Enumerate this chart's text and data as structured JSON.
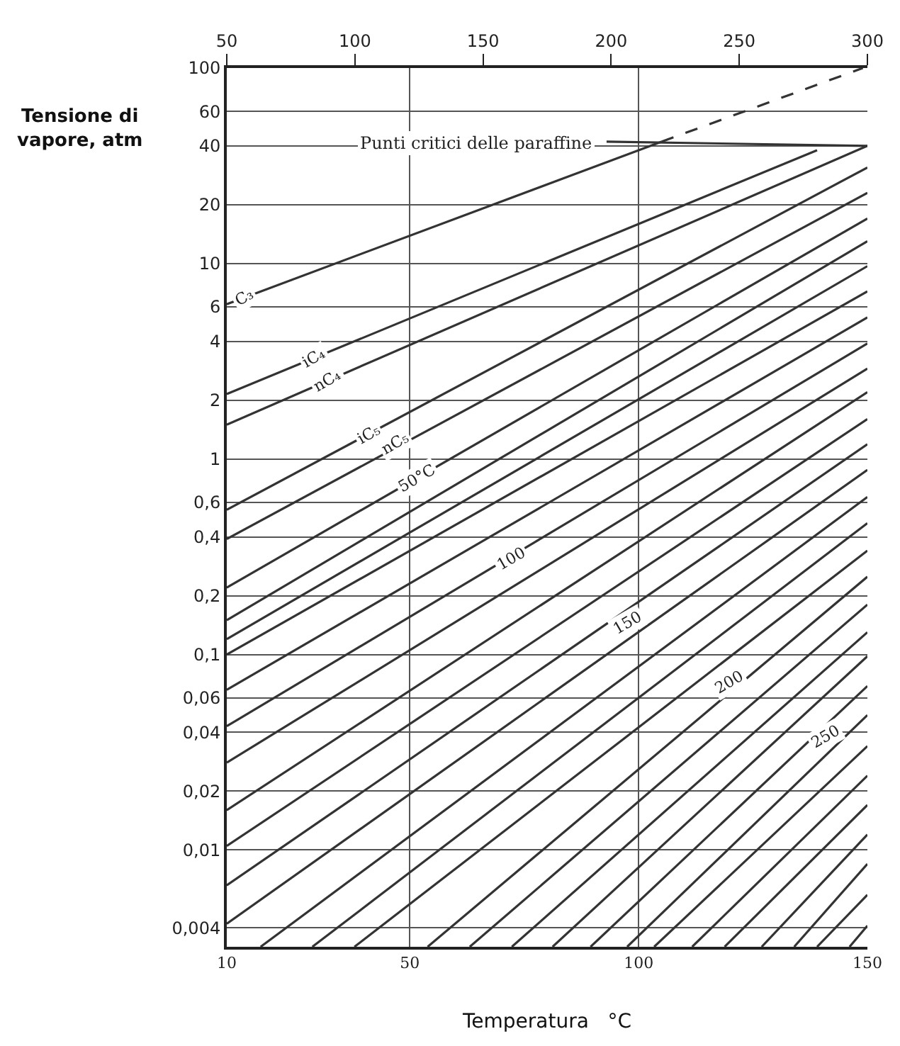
{
  "chart_data": {
    "type": "line",
    "xlabel": "Temperatura   °C",
    "ylabel": "Tensione di\nvapore, atm",
    "x2label": null,
    "xlim": [
      10,
      150
    ],
    "xticks": [
      10,
      50,
      100,
      150
    ],
    "x2lim": [
      50,
      300
    ],
    "x2ticks": [
      50,
      100,
      150,
      200,
      250,
      300
    ],
    "ylim": [
      0.0032,
      100
    ],
    "log": true,
    "yticks": [
      100,
      60,
      40,
      20,
      10,
      6,
      4,
      2,
      1,
      {
        "value": 0.6,
        "label": "0,6"
      },
      {
        "value": 0.4,
        "label": "0,4"
      },
      {
        "value": 0.2,
        "label": "0,2"
      },
      {
        "value": 0.1,
        "label": "0,1"
      },
      {
        "value": 0.06,
        "label": "0,06"
      },
      {
        "value": 0.04,
        "label": "0,04"
      },
      {
        "value": 0.02,
        "label": "0,02"
      },
      {
        "value": 0.01,
        "label": "0,01"
      },
      {
        "value": 0.004,
        "label": "0,004"
      }
    ],
    "grid": true,
    "marker": "none",
    "series": [
      {
        "color": "#333333",
        "x": [
          10,
          105
        ],
        "values": [
          6.2,
          42
        ]
      },
      {
        "color": "#333333",
        "x": [
          105,
          149
        ],
        "values": [
          42,
          100
        ],
        "line_style": "dashed"
      },
      {
        "color": "#333333",
        "x": [
          93,
          150
        ],
        "values": [
          42,
          40
        ]
      },
      {
        "color": "#333333",
        "x": [
          10,
          139
        ],
        "values": [
          2.15,
          38
        ]
      },
      {
        "color": "#333333",
        "x": [
          10,
          150
        ],
        "values": [
          1.5,
          40
        ]
      },
      {
        "color": "#333333",
        "x": [
          10,
          150
        ],
        "values": [
          0.55,
          31
        ]
      },
      {
        "color": "#333333",
        "x": [
          10,
          150
        ],
        "values": [
          0.39,
          23
        ]
      },
      {
        "color": "#333333",
        "x": [
          10,
          150
        ],
        "values": [
          0.22,
          17
        ]
      },
      {
        "color": "#333333",
        "x": [
          10,
          150
        ],
        "values": [
          0.15,
          13
        ]
      },
      {
        "color": "#333333",
        "x": [
          10,
          150
        ],
        "values": [
          0.12,
          9.7
        ]
      },
      {
        "color": "#333333",
        "x": [
          10,
          150
        ],
        "values": [
          0.1,
          7.2
        ]
      },
      {
        "color": "#333333",
        "x": [
          10,
          150
        ],
        "values": [
          0.066,
          5.3
        ]
      },
      {
        "color": "#333333",
        "x": [
          10,
          150
        ],
        "values": [
          0.043,
          3.9
        ]
      },
      {
        "color": "#333333",
        "x": [
          10,
          150
        ],
        "values": [
          0.028,
          2.9
        ]
      },
      {
        "color": "#333333",
        "x": [
          10,
          150
        ],
        "values": [
          0.016,
          2.2
        ]
      },
      {
        "color": "#333333",
        "x": [
          10,
          150
        ],
        "values": [
          0.0105,
          1.6
        ]
      },
      {
        "color": "#333333",
        "x": [
          10,
          150
        ],
        "values": [
          0.0066,
          1.19
        ]
      },
      {
        "color": "#333333",
        "x": [
          10,
          150
        ],
        "values": [
          0.0042,
          0.88
        ]
      },
      {
        "color": "#333333",
        "x": [
          17.4,
          150
        ],
        "values": [
          0.0032,
          0.64
        ]
      },
      {
        "color": "#333333",
        "x": [
          28.7,
          150
        ],
        "values": [
          0.0032,
          0.47
        ]
      },
      {
        "color": "#333333",
        "x": [
          37.9,
          150
        ],
        "values": [
          0.0032,
          0.34
        ]
      },
      {
        "color": "#333333",
        "x": [
          53.9,
          150
        ],
        "values": [
          0.0032,
          0.25
        ]
      },
      {
        "color": "#333333",
        "x": [
          63.1,
          150
        ],
        "values": [
          0.0032,
          0.18
        ]
      },
      {
        "color": "#333333",
        "x": [
          72.3,
          150
        ],
        "values": [
          0.0032,
          0.13
        ]
      },
      {
        "color": "#333333",
        "x": [
          81.2,
          150
        ],
        "values": [
          0.0032,
          0.098
        ]
      },
      {
        "color": "#333333",
        "x": [
          89.5,
          150
        ],
        "values": [
          0.0032,
          0.069
        ]
      },
      {
        "color": "#333333",
        "x": [
          97.5,
          150
        ],
        "values": [
          0.0032,
          0.049
        ]
      },
      {
        "color": "#333333",
        "x": [
          103.4,
          150
        ],
        "values": [
          0.0032,
          0.034
        ]
      },
      {
        "color": "#333333",
        "x": [
          111.7,
          150
        ],
        "values": [
          0.0032,
          0.024
        ]
      },
      {
        "color": "#333333",
        "x": [
          118.8,
          150
        ],
        "values": [
          0.0032,
          0.017
        ]
      },
      {
        "color": "#333333",
        "x": [
          126.9,
          150
        ],
        "values": [
          0.0032,
          0.012
        ]
      },
      {
        "color": "#333333",
        "x": [
          134,
          150
        ],
        "values": [
          0.0032,
          0.0085
        ]
      },
      {
        "color": "#333333",
        "x": [
          139,
          150
        ],
        "values": [
          0.0032,
          0.0059
        ]
      },
      {
        "color": "#333333",
        "x": [
          146.1,
          150
        ],
        "values": [
          0.0032,
          0.0041
        ]
      }
    ],
    "annotations": [
      "Punti critici delle paraffine",
      {
        "text": "C₃",
        "x": 14,
        "y": 6.7
      },
      {
        "text": "iC₄",
        "x": 29,
        "y": 3.3
      },
      {
        "text": "nC₄",
        "x": 32,
        "y": 2.5
      },
      {
        "text": "iC₅",
        "x": 41,
        "y": 1.34
      },
      {
        "text": "nC₅",
        "x": 47,
        "y": 1.2
      },
      {
        "text": "50°C",
        "x": 51.5,
        "y": 0.8
      },
      {
        "text": "100",
        "x": 72,
        "y": 0.31
      },
      {
        "text": "150",
        "x": 97.5,
        "y": 0.146
      },
      {
        "text": "200",
        "x": 119.7,
        "y": 0.072
      },
      {
        "text": "250",
        "x": 141,
        "y": 0.038
      }
    ]
  }
}
